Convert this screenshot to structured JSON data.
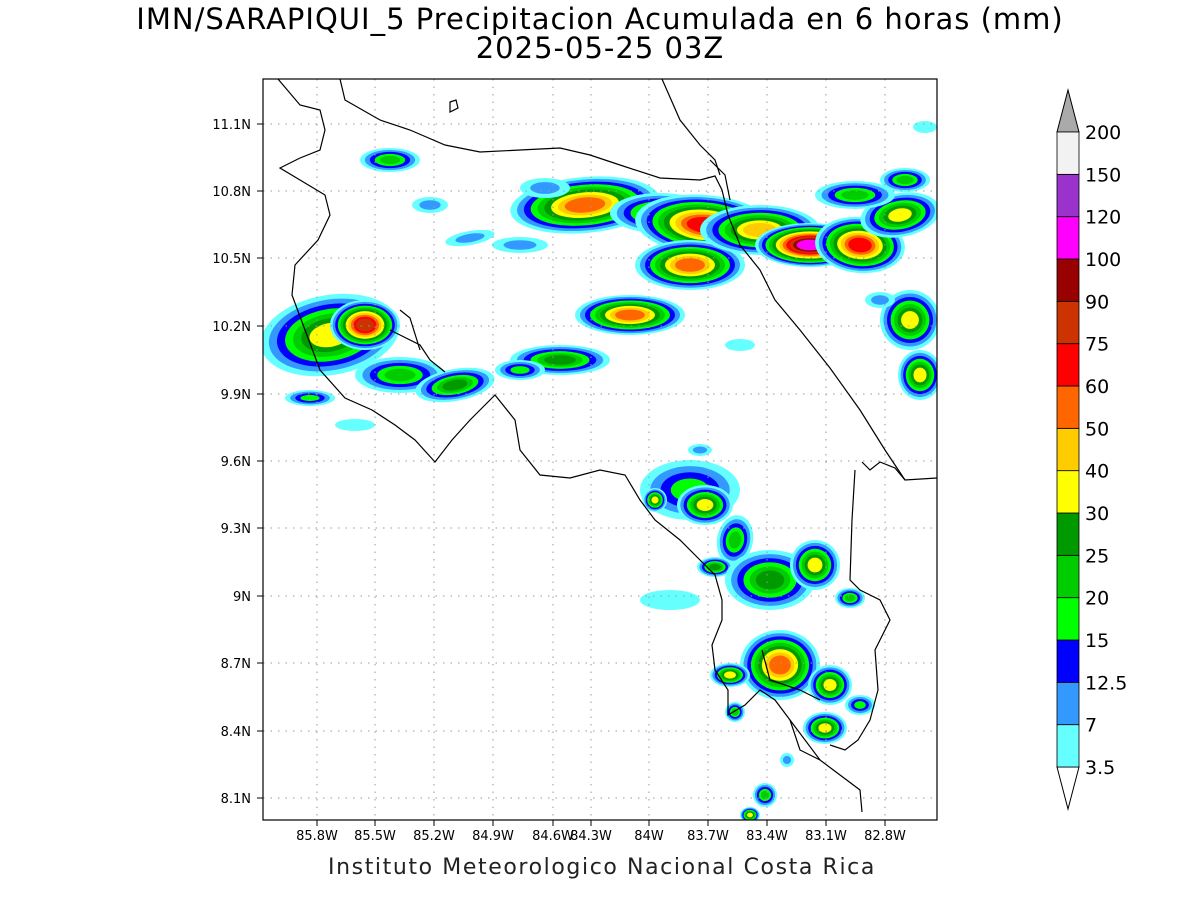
{
  "title": {
    "line1": "IMN/SARAPIQUI_5 Precipitacion Acumulada en 6 horas (mm)",
    "line2": "2025-05-25 03Z"
  },
  "credit": "Instituto Meteorologico Nacional Costa Rica",
  "map": {
    "lat_ticks": [
      "11.1N",
      "10.8N",
      "10.5N",
      "10.2N",
      "9.9N",
      "9.6N",
      "9.3N",
      "9N",
      "8.7N",
      "8.4N",
      "8.1N"
    ],
    "lon_ticks": [
      "85.8W",
      "85.5W",
      "85.2W",
      "84.9W",
      "84.6W",
      "84.3W",
      "84W",
      "83.7W",
      "83.4W",
      "83.1W",
      "82.8W"
    ],
    "grid": true
  },
  "colorbar": {
    "levels": [
      "3.5",
      "7",
      "12.5",
      "15",
      "20",
      "25",
      "30",
      "40",
      "50",
      "60",
      "75",
      "90",
      "100",
      "120",
      "150",
      "200"
    ],
    "colors": [
      "#66ffff",
      "#3399ff",
      "#0000ff",
      "#00ff00",
      "#00cc00",
      "#009900",
      "#ffff00",
      "#ffcc00",
      "#ff6600",
      "#ff0000",
      "#cc3300",
      "#990000",
      "#ff00ff",
      "#9933cc",
      "#f2f2f2",
      "#aaaaaa"
    ]
  }
}
